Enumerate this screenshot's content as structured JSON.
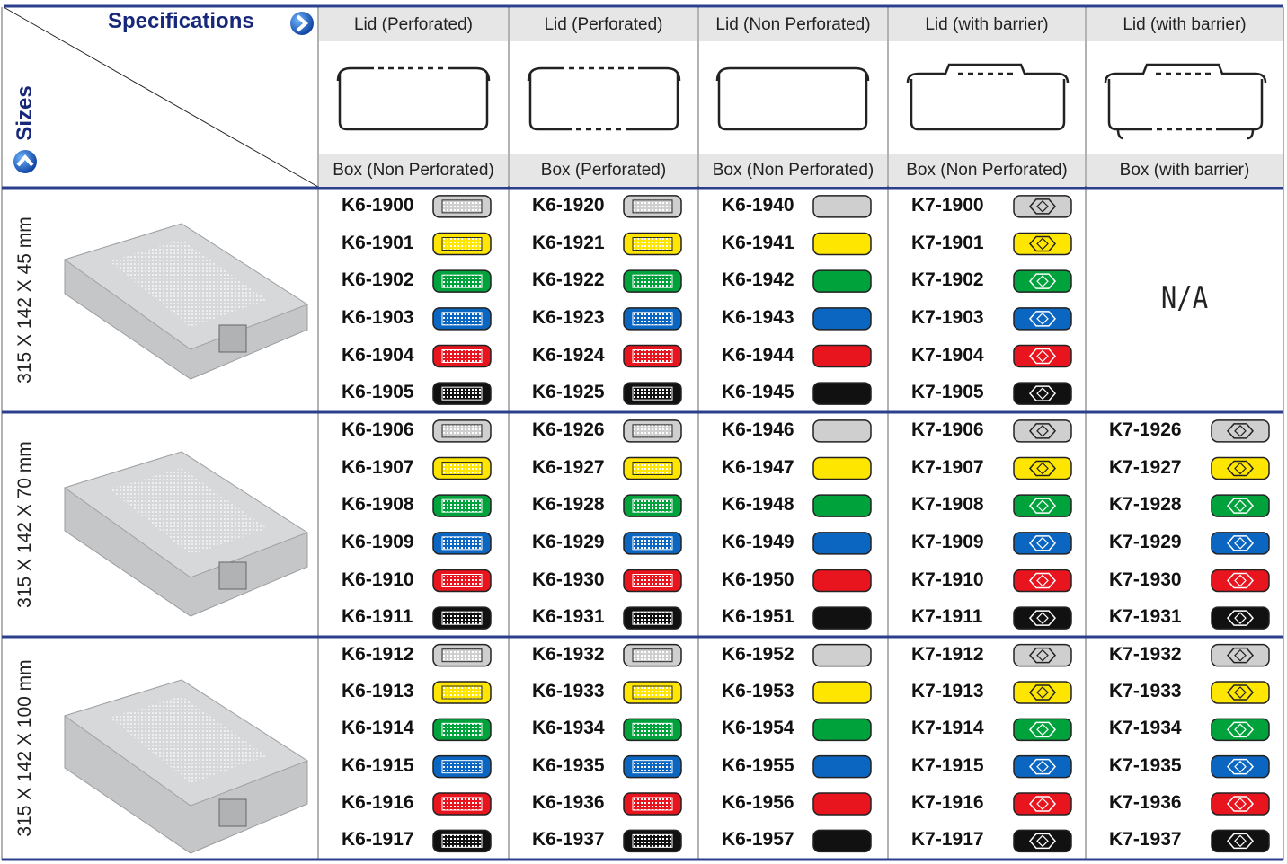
{
  "header": {
    "specifications": "Specifications",
    "sizes": "Sizes"
  },
  "columns": [
    {
      "lid": "Lid (Perforated)",
      "box": "Box (Non Perforated)"
    },
    {
      "lid": "Lid (Perforated)",
      "box": "Box (Perforated)"
    },
    {
      "lid": "Lid (Non Perforated)",
      "box": "Box (Non Perforated)"
    },
    {
      "lid": "Lid (with barrier)",
      "box": "Box (Non Perforated)"
    },
    {
      "lid": "Lid (with barrier)",
      "box": "Box (with barrier)"
    }
  ],
  "swatch_colors": [
    "#cfcfcf",
    "#ffe600",
    "#00a23c",
    "#0b66c2",
    "#e8141e",
    "#111111"
  ],
  "groups": [
    {
      "size": "315 X 142 X 45 mm",
      "cells": [
        [
          "K6-1900",
          "K6-1901",
          "K6-1902",
          "K6-1903",
          "K6-1904",
          "K6-1905"
        ],
        [
          "K6-1920",
          "K6-1921",
          "K6-1922",
          "K6-1923",
          "K6-1924",
          "K6-1925"
        ],
        [
          "K6-1940",
          "K6-1941",
          "K6-1942",
          "K6-1943",
          "K6-1944",
          "K6-1945"
        ],
        [
          "K7-1900",
          "K7-1901",
          "K7-1902",
          "K7-1903",
          "K7-1904",
          "K7-1905"
        ],
        "N/A"
      ]
    },
    {
      "size": "315 X 142 X 70 mm",
      "cells": [
        [
          "K6-1906",
          "K6-1907",
          "K6-1908",
          "K6-1909",
          "K6-1910",
          "K6-1911"
        ],
        [
          "K6-1926",
          "K6-1927",
          "K6-1928",
          "K6-1929",
          "K6-1930",
          "K6-1931"
        ],
        [
          "K6-1946",
          "K6-1947",
          "K6-1948",
          "K6-1949",
          "K6-1950",
          "K6-1951"
        ],
        [
          "K7-1906",
          "K7-1907",
          "K7-1908",
          "K7-1909",
          "K7-1910",
          "K7-1911"
        ],
        [
          "K7-1926",
          "K7-1927",
          "K7-1928",
          "K7-1929",
          "K7-1930",
          "K7-1931"
        ]
      ]
    },
    {
      "size": "315 X 142 X 100 mm",
      "cells": [
        [
          "K6-1912",
          "K6-1913",
          "K6-1914",
          "K6-1915",
          "K6-1916",
          "K6-1917"
        ],
        [
          "K6-1932",
          "K6-1933",
          "K6-1934",
          "K6-1935",
          "K6-1936",
          "K6-1937"
        ],
        [
          "K6-1952",
          "K6-1953",
          "K6-1954",
          "K6-1955",
          "K6-1956",
          "K6-1957"
        ],
        [
          "K7-1912",
          "K7-1913",
          "K7-1914",
          "K7-1915",
          "K7-1916",
          "K7-1917"
        ],
        [
          "K7-1932",
          "K7-1933",
          "K7-1934",
          "K7-1935",
          "K7-1936",
          "K7-1937"
        ]
      ]
    }
  ]
}
